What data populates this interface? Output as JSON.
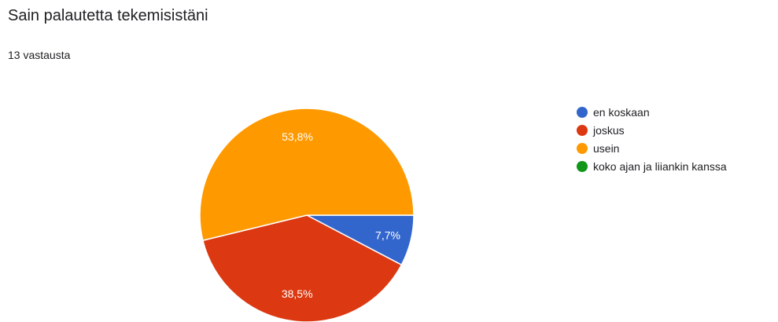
{
  "title": "Sain palautetta tekemisistäni",
  "subtitle": "13 vastausta",
  "chart_data": {
    "type": "pie",
    "title": "Sain palautetta tekemisistäni",
    "categories": [
      "en koskaan",
      "joskus",
      "usein",
      "koko ajan ja liiankin kanssa"
    ],
    "values": [
      7.7,
      38.5,
      53.8,
      0
    ],
    "value_labels": [
      "7,7%",
      "38,5%",
      "53,8%",
      ""
    ],
    "colors": [
      "#3366cc",
      "#dc3912",
      "#ff9900",
      "#109618"
    ],
    "legend_position": "right"
  }
}
